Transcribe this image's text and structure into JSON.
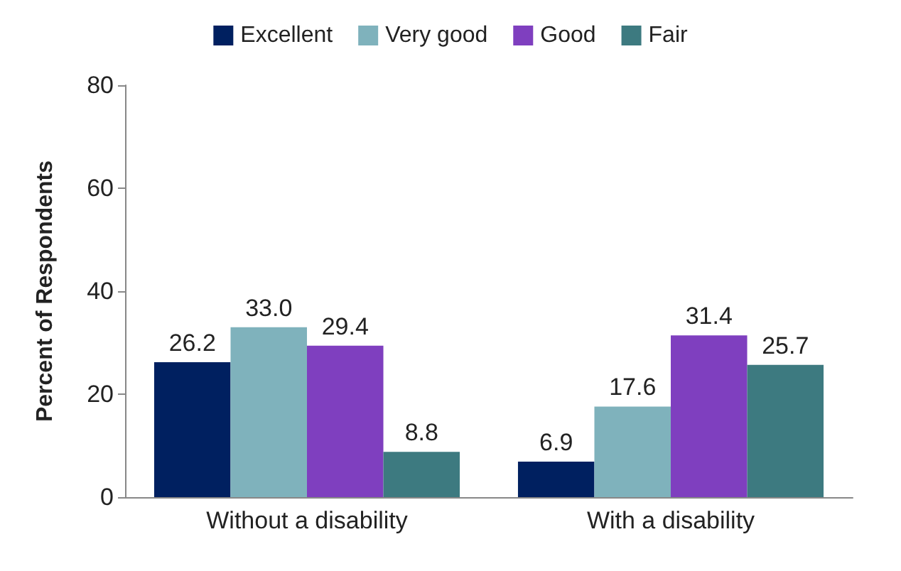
{
  "chart_data": {
    "type": "bar",
    "ylabel": "Percent of Respondents",
    "categories": [
      "Without a disability",
      "With a disability"
    ],
    "series": [
      {
        "name": "Excellent",
        "color": "#002060",
        "values": [
          26.2,
          6.9
        ],
        "value_labels": [
          "26.2",
          "6.9"
        ]
      },
      {
        "name": "Very good",
        "color": "#7fb2bc",
        "values": [
          33.0,
          17.6
        ],
        "value_labels": [
          "33.0",
          "17.6"
        ]
      },
      {
        "name": "Good",
        "color": "#7f3fbf",
        "values": [
          29.4,
          31.4
        ],
        "value_labels": [
          "29.4",
          "31.4"
        ]
      },
      {
        "name": "Fair",
        "color": "#3d7a80",
        "values": [
          8.8,
          25.7
        ],
        "value_labels": [
          "8.8",
          "25.7"
        ]
      }
    ],
    "ylim": [
      0,
      80
    ],
    "yticks": [
      0,
      20,
      40,
      60,
      80
    ],
    "grid": false,
    "legend": "top"
  }
}
